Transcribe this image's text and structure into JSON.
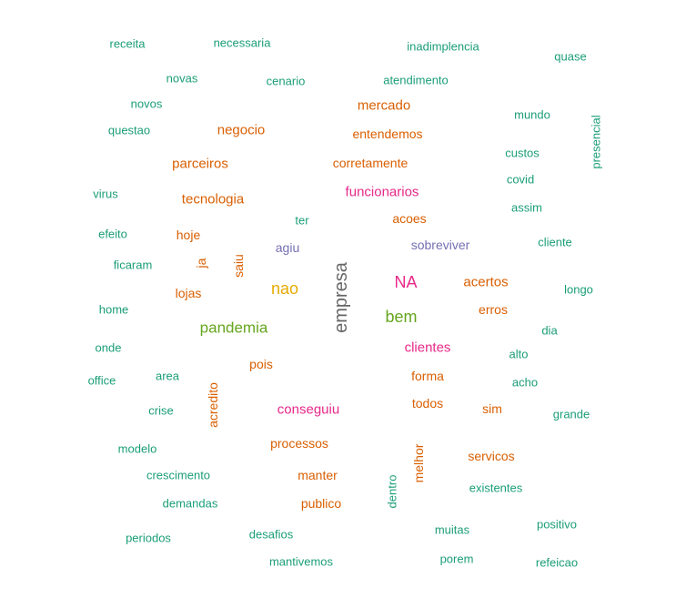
{
  "palette": {
    "teal": "#1b9e77",
    "orange": "#d95f02",
    "purple": "#7570b3",
    "pink": "#e7298a",
    "green": "#66a61e",
    "gold": "#e6ab02",
    "gray": "#666666"
  },
  "words": [
    "receita",
    "necessaria",
    "inadimplencia",
    "quase",
    "novas",
    "cenario",
    "atendimento",
    "novos",
    "mercado",
    "mundo",
    "questao",
    "negocio",
    "entendemos",
    "presencial",
    "custos",
    "parceiros",
    "corretamente",
    "covid",
    "virus",
    "tecnologia",
    "funcionarios",
    "assim",
    "ter",
    "acoes",
    "efeito",
    "hoje",
    "cliente",
    "agiu",
    "sobreviver",
    "ja",
    "saiu",
    "ficaram",
    "empresa",
    "NA",
    "acertos",
    "longo",
    "lojas",
    "nao",
    "home",
    "erros",
    "bem",
    "pandemia",
    "dia",
    "onde",
    "clientes",
    "alto",
    "pois",
    "area",
    "forma",
    "office",
    "acho",
    "acredito",
    "crise",
    "conseguiu",
    "todos",
    "sim",
    "grande",
    "processos",
    "modelo",
    "melhor",
    "servicos",
    "crescimento",
    "manter",
    "existentes",
    "dentro",
    "demandas",
    "publico",
    "positivo",
    "desafios",
    "muitas",
    "periodos",
    "mantivemos",
    "porem",
    "refeicao"
  ]
}
